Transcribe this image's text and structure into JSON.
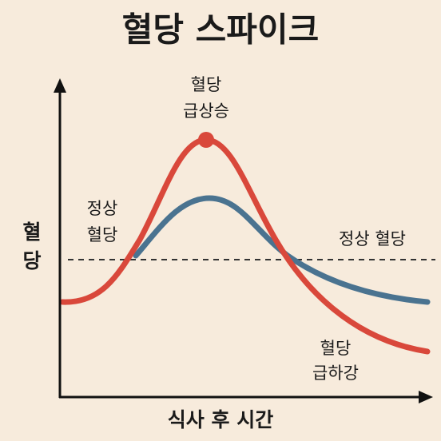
{
  "title": "혈당 스파이크",
  "y_axis_label": {
    "lines": [
      "혈",
      "당"
    ]
  },
  "x_axis_label": "식사 후 시간",
  "labels": {
    "spike": {
      "lines": [
        "혈당",
        "급상승"
      ]
    },
    "normal_left": {
      "lines": [
        "정상",
        "혈당"
      ]
    },
    "normal_line": "정상 혈당",
    "drop": {
      "lines": [
        "혈당",
        "급하강"
      ]
    }
  }
}
